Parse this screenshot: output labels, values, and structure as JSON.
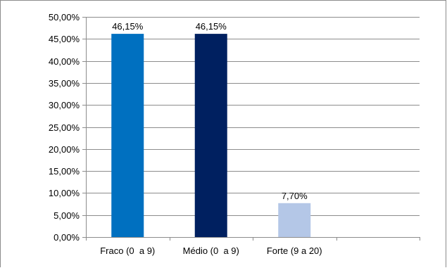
{
  "chart_data": {
    "type": "bar",
    "title": "",
    "xlabel": "",
    "ylabel": "",
    "categories": [
      "Fraco (0  a 9)",
      "Médio (0  a 9)",
      "Forte (9 a 20)"
    ],
    "values": [
      46.15,
      46.15,
      7.7
    ],
    "data_labels": [
      "46,15%",
      "46,15%",
      "7,70%"
    ],
    "bar_colors": [
      "#0070c0",
      "#002060",
      "#b4c7e7"
    ],
    "ylim": [
      0,
      50
    ],
    "yticks": [
      {
        "value": 0,
        "label": "0,00%"
      },
      {
        "value": 5,
        "label": "5,00%"
      },
      {
        "value": 10,
        "label": "10,00%"
      },
      {
        "value": 15,
        "label": "15,00%"
      },
      {
        "value": 20,
        "label": "20,00%"
      },
      {
        "value": 25,
        "label": "25,00%"
      },
      {
        "value": 30,
        "label": "30,00%"
      },
      {
        "value": 35,
        "label": "35,00%"
      },
      {
        "value": 40,
        "label": "40,00%"
      },
      {
        "value": 45,
        "label": "45,00%"
      },
      {
        "value": 50,
        "label": "50,00%"
      }
    ],
    "grid": true,
    "legend": "none"
  }
}
